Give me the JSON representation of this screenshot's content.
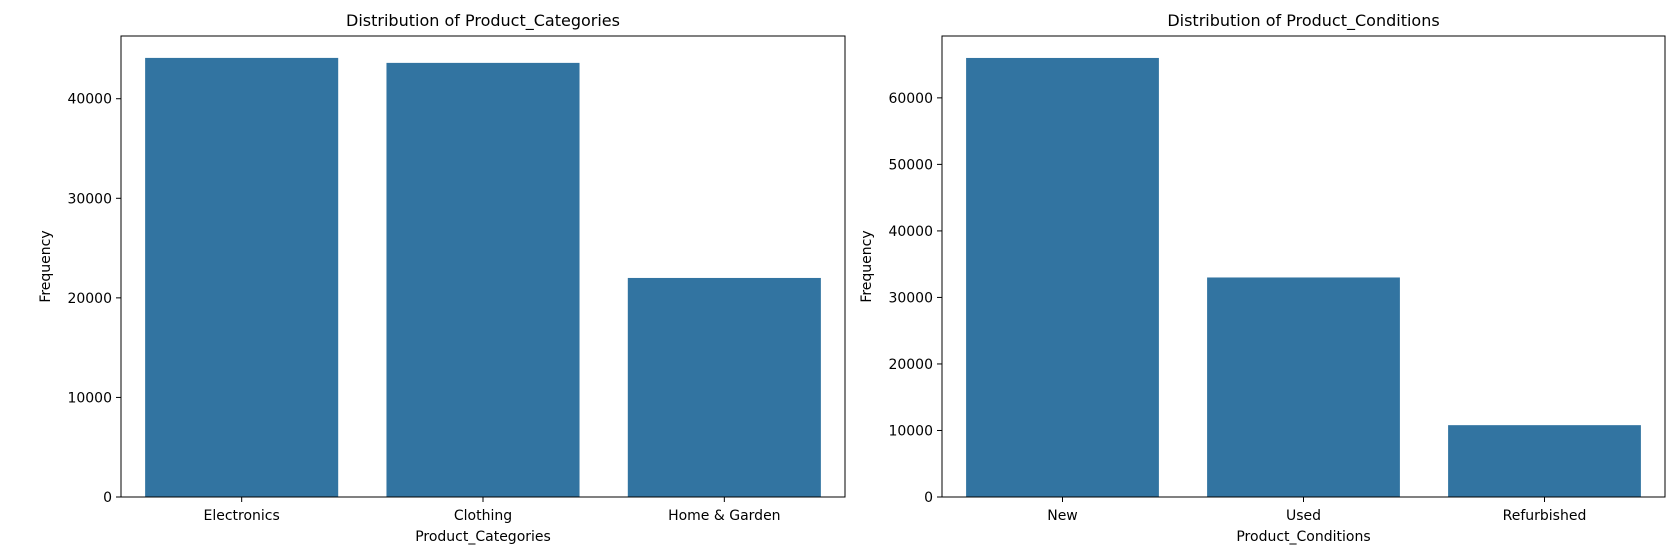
{
  "chart_data": [
    {
      "type": "bar",
      "title": "Distribution of Product_Categories",
      "xlabel": "Product_Categories",
      "ylabel": "Frequency",
      "categories": [
        "Electronics",
        "Clothing",
        "Home & Garden"
      ],
      "values": [
        44100,
        43600,
        22000
      ],
      "ylim": [
        0,
        46300
      ],
      "yticks": [
        0,
        10000,
        20000,
        30000,
        40000
      ],
      "ytick_labels": [
        "0",
        "10000",
        "20000",
        "30000",
        "40000"
      ],
      "bar_color": "#3274a1",
      "grid": false
    },
    {
      "type": "bar",
      "title": "Distribution of Product_Conditions",
      "xlabel": "Product_Conditions",
      "ylabel": "Frequency",
      "categories": [
        "New",
        "Used",
        "Refurbished"
      ],
      "values": [
        66000,
        33000,
        10800
      ],
      "ylim": [
        0,
        69300
      ],
      "yticks": [
        0,
        10000,
        20000,
        30000,
        40000,
        50000,
        60000
      ],
      "ytick_labels": [
        "0",
        "10000",
        "20000",
        "30000",
        "40000",
        "50000",
        "60000"
      ],
      "bar_color": "#3274a1",
      "grid": false
    }
  ]
}
